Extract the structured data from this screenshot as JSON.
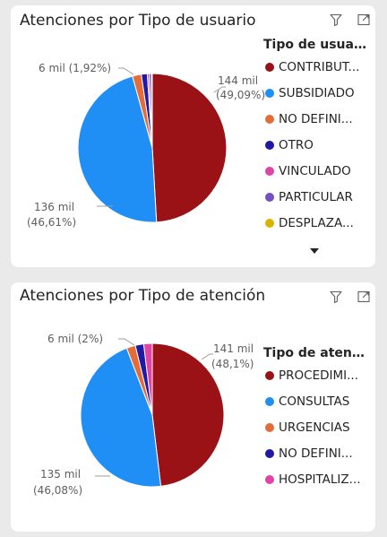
{
  "visual1": {
    "title": "Atenciones por Tipo de usuario",
    "legend_title": "Tipo de usuario",
    "data_labels": [
      {
        "value": "144 mil",
        "percent": "(49,09%)"
      },
      {
        "value": "136 mil",
        "percent": "(46,61%)"
      },
      {
        "value": "6 mil (1,92%)"
      }
    ]
  },
  "visual2": {
    "title": "Atenciones por Tipo de atención",
    "legend_title": "Tipo de atención",
    "data_labels": [
      {
        "value": "141 mil",
        "percent": "(48,1%)"
      },
      {
        "value": "135 mil",
        "percent": "(46,08%)"
      },
      {
        "value": "6 mil (2%)"
      }
    ]
  },
  "chart_data": [
    {
      "type": "pie",
      "title": "Atenciones por Tipo de usuario",
      "legend_title": "Tipo de usuario",
      "legend_position": "right",
      "categories": [
        "CONTRIBUTIVO",
        "SUBSIDIADO",
        "NO DEFINIDO",
        "OTRO",
        "VINCULADO",
        "PARTICULAR",
        "DESPLAZADO"
      ],
      "legend_labels": [
        "CONTRIBUT...",
        "SUBSIDIADO",
        "NO DEFINI...",
        "OTRO",
        "VINCULADO",
        "PARTICULAR",
        "DESPLAZA..."
      ],
      "values_percent": [
        49.09,
        46.61,
        1.92,
        1.3,
        0.4,
        0.5,
        0.18
      ],
      "colors": [
        "#9b1216",
        "#1f8ff5",
        "#e66c37",
        "#1f1aa3",
        "#e044a7",
        "#744ec2",
        "#d9b300"
      ]
    },
    {
      "type": "pie",
      "title": "Atenciones por Tipo de atención",
      "legend_title": "Tipo de atención",
      "legend_position": "right",
      "categories": [
        "PROCEDIMIENTOS",
        "CONSULTAS",
        "URGENCIAS",
        "NO DEFINIDO",
        "HOSPITALIZACION"
      ],
      "legend_labels": [
        "PROCEDIMI...",
        "CONSULTAS",
        "URGENCIAS",
        "NO DEFINI...",
        "HOSPITALIZ..."
      ],
      "values_percent": [
        48.1,
        46.08,
        2.0,
        1.9,
        1.92
      ],
      "colors": [
        "#9b1216",
        "#1f8ff5",
        "#e66c37",
        "#1f1aa3",
        "#e044a7"
      ]
    }
  ]
}
